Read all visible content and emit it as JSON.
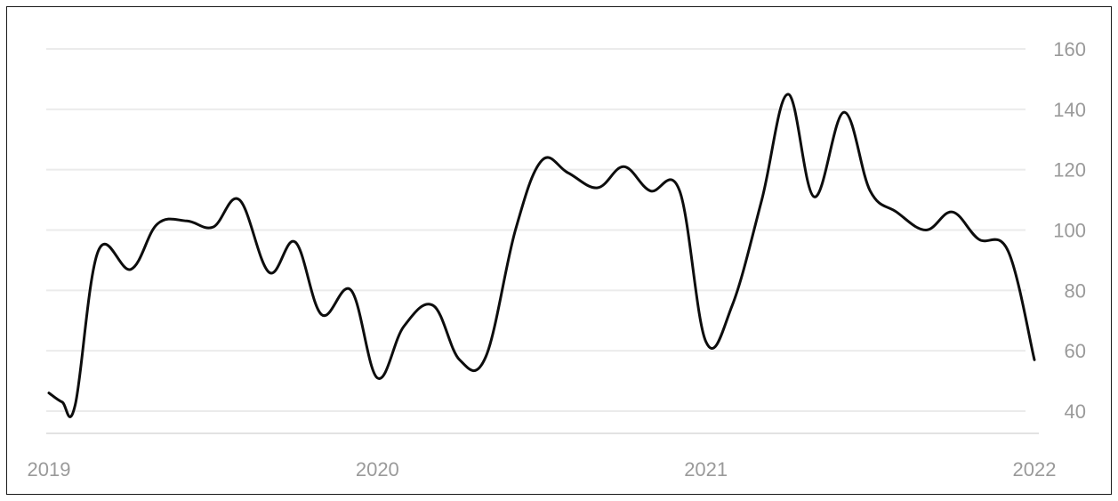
{
  "chart_data": {
    "type": "line",
    "title": "",
    "xlabel": "",
    "ylabel": "",
    "x_ticks": [
      "2019",
      "2020",
      "2021",
      "2022"
    ],
    "y_ticks": [
      40,
      60,
      80,
      100,
      120,
      140,
      160
    ],
    "xlim": [
      2019.0,
      2022.0
    ],
    "ylim": [
      33,
      165
    ],
    "y_axis_side": "right",
    "grid": "horizontal",
    "legend": "none",
    "line_color": "#0d0d0d",
    "series": [
      {
        "x": [
          2019.0,
          2019.04,
          2019.08,
          2019.15,
          2019.25,
          2019.33,
          2019.42,
          2019.5,
          2019.58,
          2019.67,
          2019.75,
          2019.83,
          2019.92,
          2020.0,
          2020.08,
          2020.17,
          2020.25,
          2020.33,
          2020.42,
          2020.5,
          2020.58,
          2020.67,
          2020.75,
          2020.83,
          2020.92,
          2021.0,
          2021.08,
          2021.17,
          2021.25,
          2021.33,
          2021.42,
          2021.5,
          2021.58,
          2021.67,
          2021.75,
          2021.83,
          2021.92,
          2022.0
        ],
        "values": [
          46,
          43,
          42,
          93,
          87,
          102,
          103,
          101,
          110,
          86,
          96,
          72,
          80,
          51,
          68,
          75,
          57,
          58,
          100,
          123,
          119,
          114,
          121,
          113,
          113,
          63,
          75,
          110,
          145,
          111,
          139,
          113,
          106,
          100,
          106,
          97,
          93,
          57
        ]
      }
    ]
  }
}
